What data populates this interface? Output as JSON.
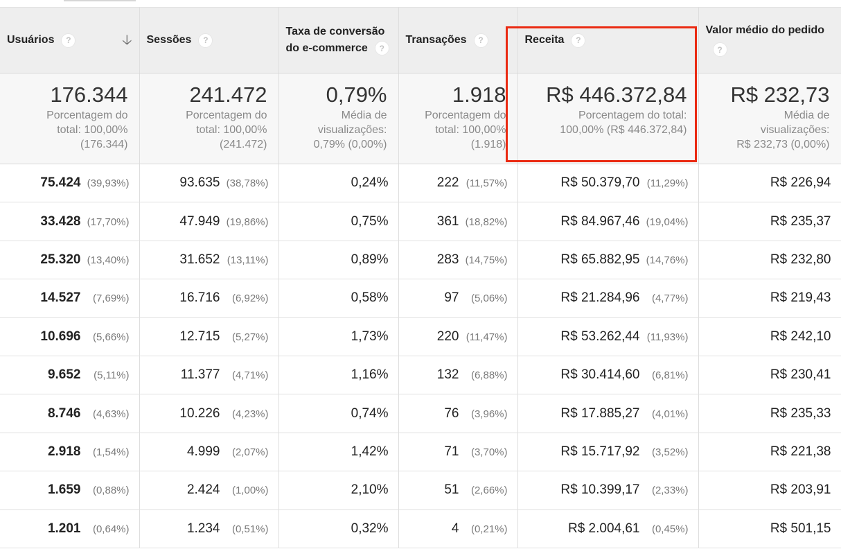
{
  "columns": [
    {
      "label": "Usuários",
      "has_sort": true
    },
    {
      "label": "Sessões"
    },
    {
      "label": "Taxa de conversão do e-commerce"
    },
    {
      "label": "Transações"
    },
    {
      "label": "Receita"
    },
    {
      "label": "Valor médio do pedido"
    }
  ],
  "help_glyph": "?",
  "sort_glyph": "🡣",
  "totals": [
    {
      "value": "176.344",
      "line1": "Porcentagem do",
      "line2": "total: 100,00%",
      "line3": "(176.344)"
    },
    {
      "value": "241.472",
      "line1": "Porcentagem do",
      "line2": "total: 100,00%",
      "line3": "(241.472)"
    },
    {
      "value": "0,79%",
      "line1": "Média de",
      "line2": "visualizações:",
      "line3": "0,79% (0,00%)"
    },
    {
      "value": "1.918",
      "line1": "Porcentagem do",
      "line2": "total: 100,00%",
      "line3": "(1.918)"
    },
    {
      "value": "R$ 446.372,84",
      "line1": "Porcentagem do total:",
      "line2": "100,00% (R$ 446.372,84)",
      "line3": ""
    },
    {
      "value": "R$ 232,73",
      "line1": "Média de",
      "line2": "visualizações:",
      "line3": "R$ 232,73 (0,00%)"
    }
  ],
  "rows": [
    {
      "users": "75.424",
      "users_pct": "(39,93%)",
      "sessions": "93.635",
      "sessions_pct": "(38,78%)",
      "conv": "0,24%",
      "trans": "222",
      "trans_pct": "(11,57%)",
      "revenue": "R$ 50.379,70",
      "revenue_pct": "(11,29%)",
      "aov": "R$ 226,94"
    },
    {
      "users": "33.428",
      "users_pct": "(17,70%)",
      "sessions": "47.949",
      "sessions_pct": "(19,86%)",
      "conv": "0,75%",
      "trans": "361",
      "trans_pct": "(18,82%)",
      "revenue": "R$ 84.967,46",
      "revenue_pct": "(19,04%)",
      "aov": "R$ 235,37"
    },
    {
      "users": "25.320",
      "users_pct": "(13,40%)",
      "sessions": "31.652",
      "sessions_pct": "(13,11%)",
      "conv": "0,89%",
      "trans": "283",
      "trans_pct": "(14,75%)",
      "revenue": "R$ 65.882,95",
      "revenue_pct": "(14,76%)",
      "aov": "R$ 232,80"
    },
    {
      "users": "14.527",
      "users_pct": "(7,69%)",
      "sessions": "16.716",
      "sessions_pct": "(6,92%)",
      "conv": "0,58%",
      "trans": "97",
      "trans_pct": "(5,06%)",
      "revenue": "R$ 21.284,96",
      "revenue_pct": "(4,77%)",
      "aov": "R$ 219,43"
    },
    {
      "users": "10.696",
      "users_pct": "(5,66%)",
      "sessions": "12.715",
      "sessions_pct": "(5,27%)",
      "conv": "1,73%",
      "trans": "220",
      "trans_pct": "(11,47%)",
      "revenue": "R$ 53.262,44",
      "revenue_pct": "(11,93%)",
      "aov": "R$ 242,10"
    },
    {
      "users": "9.652",
      "users_pct": "(5,11%)",
      "sessions": "11.377",
      "sessions_pct": "(4,71%)",
      "conv": "1,16%",
      "trans": "132",
      "trans_pct": "(6,88%)",
      "revenue": "R$ 30.414,60",
      "revenue_pct": "(6,81%)",
      "aov": "R$ 230,41"
    },
    {
      "users": "8.746",
      "users_pct": "(4,63%)",
      "sessions": "10.226",
      "sessions_pct": "(4,23%)",
      "conv": "0,74%",
      "trans": "76",
      "trans_pct": "(3,96%)",
      "revenue": "R$ 17.885,27",
      "revenue_pct": "(4,01%)",
      "aov": "R$ 235,33"
    },
    {
      "users": "2.918",
      "users_pct": "(1,54%)",
      "sessions": "4.999",
      "sessions_pct": "(2,07%)",
      "conv": "1,42%",
      "trans": "71",
      "trans_pct": "(3,70%)",
      "revenue": "R$ 15.717,92",
      "revenue_pct": "(3,52%)",
      "aov": "R$ 221,38"
    },
    {
      "users": "1.659",
      "users_pct": "(0,88%)",
      "sessions": "2.424",
      "sessions_pct": "(1,00%)",
      "conv": "2,10%",
      "trans": "51",
      "trans_pct": "(2,66%)",
      "revenue": "R$ 10.399,17",
      "revenue_pct": "(2,33%)",
      "aov": "R$ 203,91"
    },
    {
      "users": "1.201",
      "users_pct": "(0,64%)",
      "sessions": "1.234",
      "sessions_pct": "(0,51%)",
      "conv": "0,32%",
      "trans": "4",
      "trans_pct": "(0,21%)",
      "revenue": "R$ 2.004,61",
      "revenue_pct": "(0,45%)",
      "aov": "R$ 501,15"
    }
  ],
  "colors": {
    "highlight_border": "#ea2a12",
    "header_bg": "#eeeeee",
    "totals_bg": "#f7f7f7"
  }
}
